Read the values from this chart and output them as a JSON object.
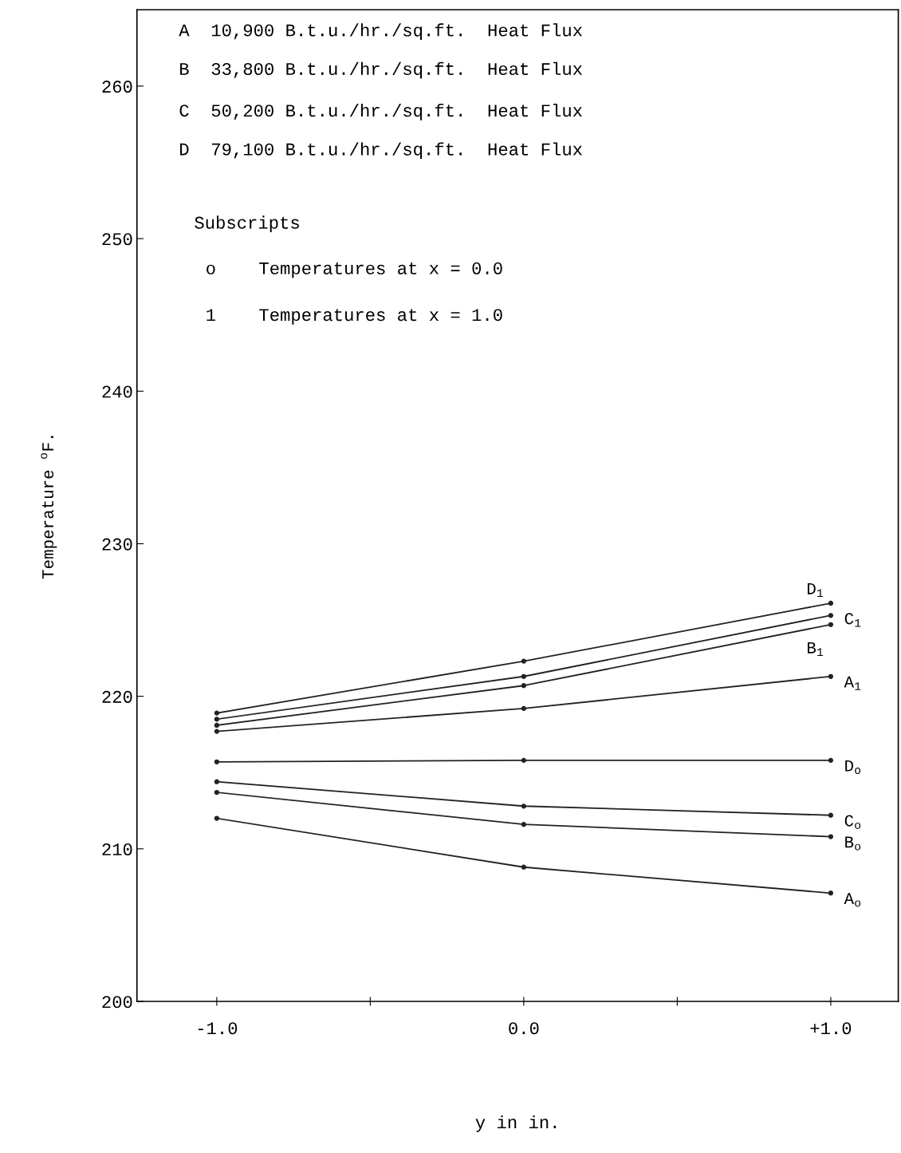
{
  "chart_data": {
    "type": "line",
    "xlabel": "y in in.",
    "ylabel": "Temperature $^{o}$F.",
    "x": [
      -1.0,
      0.0,
      1.0
    ],
    "series": [
      {
        "name": "D$_{1}$",
        "color": "#222222",
        "values": [
          218.9,
          222.3,
          226.1
        ]
      },
      {
        "name": "C$_{1}$",
        "color": "#222222",
        "values": [
          218.5,
          221.3,
          225.3
        ]
      },
      {
        "name": "B$_{1}$",
        "color": "#222222",
        "values": [
          218.1,
          220.7,
          224.7
        ]
      },
      {
        "name": "A$_{1}$",
        "color": "#222222",
        "values": [
          217.7,
          219.2,
          221.3
        ]
      },
      {
        "name": "D$_{o}$",
        "color": "#222222",
        "values": [
          215.7,
          215.8,
          215.8
        ]
      },
      {
        "name": "C$_{o}$",
        "color": "#222222",
        "values": [
          214.4,
          212.8,
          212.2
        ]
      },
      {
        "name": "B$_{o}$",
        "color": "#222222",
        "values": [
          213.7,
          211.6,
          210.8
        ]
      },
      {
        "name": "A$_{o}$",
        "color": "#222222",
        "values": [
          212.0,
          208.8,
          207.1
        ]
      }
    ],
    "xlim": [
      -1.26,
      1.22
    ],
    "ylim": [
      200,
      265
    ],
    "xticks": [
      {
        "value": -1.0,
        "label": "-1.0"
      },
      {
        "value": -0.5,
        "label": null
      },
      {
        "value": 0.0,
        "label": "0.0"
      },
      {
        "value": 0.5,
        "label": null
      },
      {
        "value": 1.0,
        "label": "+1.0"
      }
    ],
    "yticks": [
      200,
      210,
      220,
      230,
      240,
      250,
      260
    ],
    "marker": "circle",
    "line_style": "solid",
    "grid": false,
    "legend": false,
    "annotations": [
      "A  10,900 B.t.u./hr./sq.ft.  Heat Flux",
      "B  33,800 B.t.u./hr./sq.ft.  Heat Flux",
      "C  50,200 B.t.u./hr./sq.ft.  Heat Flux",
      "D  79,100 B.t.u./hr./sq.ft.  Heat Flux",
      "Subscripts",
      "o    Temperatures at x = 0.0",
      "1    Temperatures at x = 1.0"
    ]
  }
}
